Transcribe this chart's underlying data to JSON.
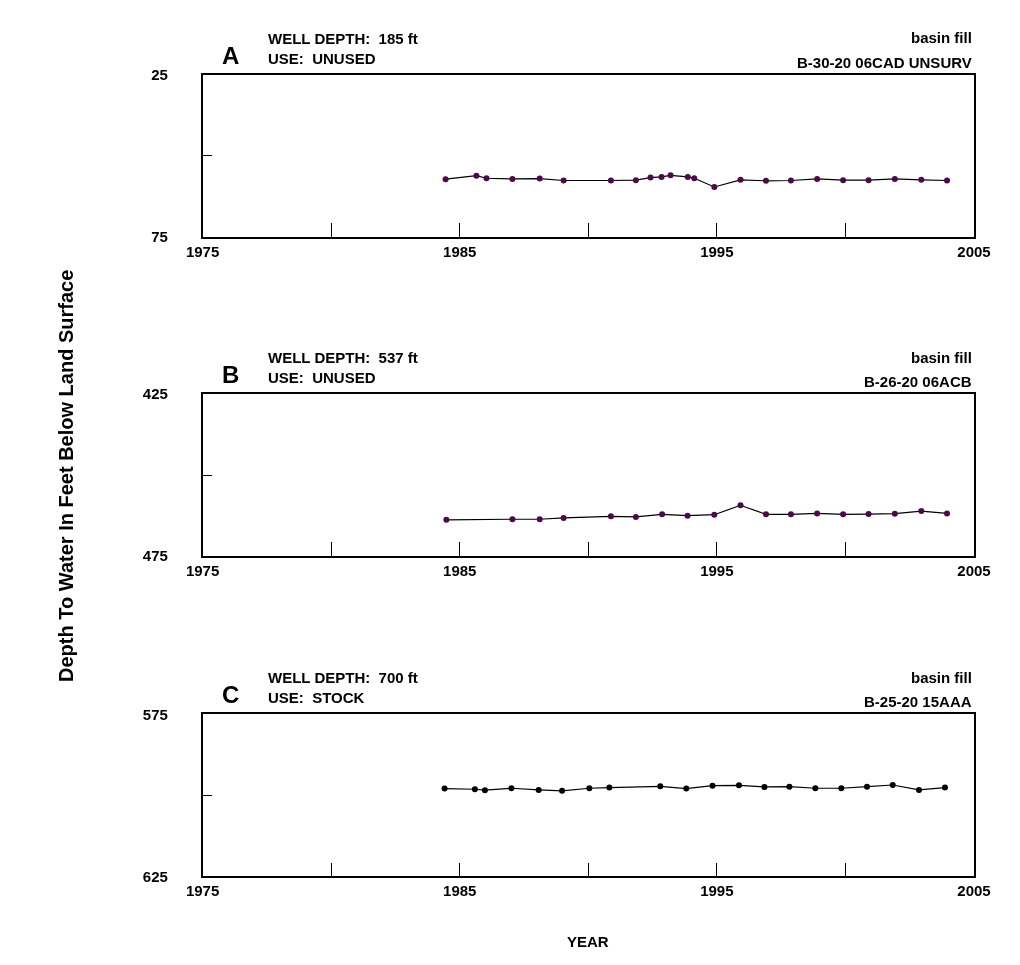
{
  "chart_data": [
    {
      "type": "line",
      "title": "A",
      "subtitle": "WELL DEPTH:  185 ft\nUSE:  UNUSED",
      "annotations": [
        "basin fill",
        "B-30-20 06CAD UNSURV"
      ],
      "ylabel": "Depth To Water In Feet Below Land Surface",
      "marker": "circle",
      "xlim": [
        1975,
        2005
      ],
      "xticks": [
        1975,
        {
          "value": 1980,
          "label": null
        },
        1985,
        {
          "value": 1990,
          "label": null
        },
        1995,
        {
          "value": 2000,
          "label": null
        },
        2005
      ],
      "ylim": [
        75,
        25
      ],
      "yticks": [
        25,
        {
          "value": 50,
          "label": null
        },
        75
      ],
      "x": [
        1984.45,
        1985.65,
        1986.04,
        1987.05,
        1988.11,
        1989.04,
        1990.88,
        1991.85,
        1992.42,
        1992.85,
        1993.2,
        1993.87,
        1994.12,
        1994.9,
        1995.92,
        1996.91,
        1997.88,
        1998.9,
        1999.91,
        2000.9,
        2001.92,
        2002.95,
        2003.95
      ],
      "series": [
        {
          "color": "#4b0a4b",
          "values": [
            57.2,
            56.1,
            56.9,
            57.1,
            57.0,
            57.6,
            57.6,
            57.5,
            56.7,
            56.5,
            56.0,
            56.5,
            56.9,
            59.6,
            57.4,
            57.7,
            57.6,
            57.1,
            57.5,
            57.5,
            57.1,
            57.4,
            57.6
          ]
        }
      ]
    },
    {
      "type": "line",
      "title": "B",
      "subtitle": "WELL DEPTH:  537 ft\nUSE:  UNUSED",
      "annotations": [
        "basin fill",
        "B-26-20 06ACB"
      ],
      "marker": "circle",
      "xlim": [
        1975,
        2005
      ],
      "xticks": [
        1975,
        {
          "value": 1980,
          "label": null
        },
        1985,
        {
          "value": 1990,
          "label": null
        },
        1995,
        {
          "value": 2000,
          "label": null
        },
        2005
      ],
      "ylim": [
        475,
        425
      ],
      "yticks": [
        425,
        {
          "value": 450,
          "label": null
        },
        475
      ],
      "x": [
        1984.48,
        1987.05,
        1988.11,
        1989.04,
        1990.88,
        1991.85,
        1992.87,
        1993.86,
        1994.9,
        1995.92,
        1996.91,
        1997.88,
        1998.9,
        1999.91,
        2000.9,
        2001.92,
        2002.95,
        2003.95
      ],
      "series": [
        {
          "color": "#4b0a4b",
          "values": [
            463.8,
            463.6,
            463.6,
            463.2,
            462.7,
            462.9,
            462.1,
            462.5,
            462.2,
            459.3,
            462.1,
            462.1,
            461.8,
            462.1,
            462.0,
            461.9,
            461.1,
            461.8
          ]
        }
      ]
    },
    {
      "type": "line",
      "title": "C",
      "subtitle": "WELL DEPTH:  700 ft\nUSE:  STOCK",
      "annotations": [
        "basin fill",
        "B-25-20 15AAA"
      ],
      "xlabel": "YEAR",
      "marker": "circle",
      "xlim": [
        1975,
        2005
      ],
      "xticks": [
        1975,
        {
          "value": 1980,
          "label": null
        },
        1985,
        {
          "value": 1990,
          "label": null
        },
        1995,
        {
          "value": 2000,
          "label": null
        },
        2005
      ],
      "ylim": [
        625,
        575
      ],
      "yticks": [
        575,
        {
          "value": 600,
          "label": null
        },
        625
      ],
      "x": [
        1984.41,
        1985.59,
        1985.98,
        1987.01,
        1988.07,
        1988.98,
        1990.04,
        1990.82,
        1992.8,
        1993.81,
        1994.83,
        1995.86,
        1996.85,
        1997.82,
        1998.83,
        1999.84,
        2000.84,
        2001.84,
        2002.86,
        2003.87
      ],
      "series": [
        {
          "color": "#000000",
          "values": [
            597.9,
            598.1,
            598.4,
            597.8,
            598.3,
            598.6,
            597.8,
            597.6,
            597.2,
            597.9,
            597.0,
            596.9,
            597.4,
            597.3,
            597.8,
            597.8,
            597.3,
            596.8,
            598.3,
            597.6
          ]
        }
      ]
    }
  ]
}
